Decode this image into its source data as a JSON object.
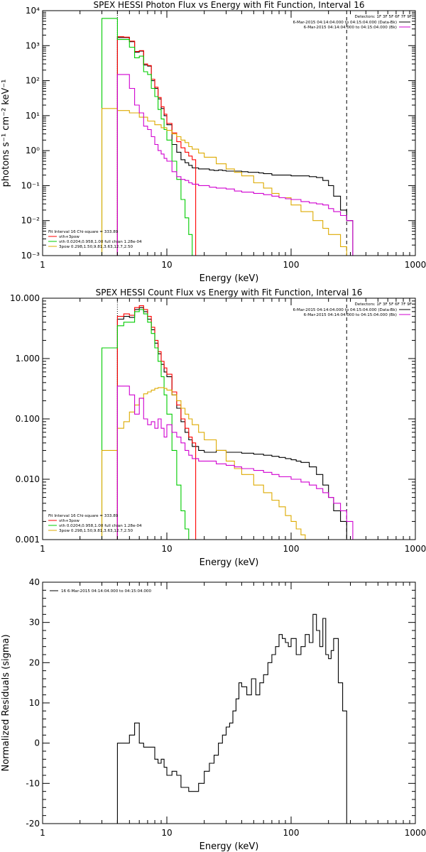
{
  "chart_data": [
    {
      "type": "line",
      "title": "SPEX HESSI Photon Flux vs Energy with Fit Function, Interval 16",
      "xlabel": "Energy (keV)",
      "ylabel": "photons s⁻¹ cm⁻² keV⁻¹",
      "xscale": "log",
      "yscale": "log",
      "xlim": [
        1,
        1000
      ],
      "ylim": [
        0.001,
        10000
      ],
      "x_ticklabels": [
        "1",
        "10",
        "100",
        "1000"
      ],
      "y_ticklabels": [
        "10⁻³",
        "10⁻²",
        "10⁻¹",
        "10⁰",
        "10¹",
        "10²",
        "10³",
        "10⁴"
      ],
      "legend_top_right": {
        "detectors": "Detectors: 1F 3F 5F 6F 7F 9F",
        "entries": [
          {
            "text": "6-Mar-2015 04:14:04.000 to 04:15:04.000 (Data-Bk)",
            "color": "#000000"
          },
          {
            "text": "6-Mar-2015 04:14:04.000 to 04:15:04.000 (Bk)",
            "color": "#d000d0"
          }
        ]
      },
      "legend_bottom_left": {
        "header": "Fit Interval 16   Chi-square = 333.89",
        "entries": [
          {
            "text": "vth+3pow",
            "color": "#ff0000"
          },
          {
            "text": "vth 0.0204,0.958,1.00  full chian 1.28e-04",
            "color": "#00cc00"
          },
          {
            "text": "3pow 0.298,1.50,9.81,3.63,12.7,2.50",
            "color": "#ddaa00"
          }
        ]
      },
      "fit_range_keV": [
        4.0,
        280
      ],
      "series": [
        {
          "name": "Data-Bk",
          "color": "#000000",
          "x": [
            4.0,
            4.5,
            5,
            5.5,
            6,
            6.5,
            7,
            7.5,
            8,
            8.5,
            9,
            9.5,
            10,
            11,
            12,
            13,
            14,
            15,
            16,
            18,
            20,
            22,
            24,
            26,
            28,
            30,
            35,
            40,
            45,
            50,
            55,
            60,
            70,
            80,
            90,
            100,
            110,
            120,
            140,
            160,
            180,
            200,
            220,
            250,
            280
          ],
          "y": [
            1700,
            1700,
            1300,
            650,
            700,
            280,
            260,
            100,
            60,
            30,
            16,
            10,
            5.5,
            1.5,
            0.9,
            0.55,
            0.45,
            0.38,
            0.32,
            0.3,
            0.3,
            0.28,
            0.27,
            0.28,
            0.27,
            0.26,
            0.26,
            0.25,
            0.24,
            0.24,
            0.23,
            0.22,
            0.2,
            0.2,
            0.2,
            0.19,
            0.19,
            0.19,
            0.18,
            0.17,
            0.14,
            0.1,
            0.05,
            0.02,
            0.01
          ]
        },
        {
          "name": "vth+3pow",
          "color": "#ff0000",
          "x": [
            4.0,
            4.5,
            5,
            5.5,
            6,
            6.5,
            7,
            7.5,
            8,
            8.5,
            9,
            9.5,
            10,
            11,
            12,
            13,
            14,
            15,
            16
          ],
          "y": [
            1800,
            1750,
            1350,
            680,
            720,
            300,
            270,
            110,
            65,
            33,
            18,
            11,
            6,
            3.2,
            1.8,
            1.2,
            0.9,
            0.7,
            0.55
          ]
        },
        {
          "name": "vth",
          "color": "#00cc00",
          "x": [
            3.0,
            3.5,
            4.0,
            4.5,
            5,
            5.5,
            6,
            6.5,
            7,
            7.5,
            8,
            8.5,
            9,
            9.5,
            10,
            11,
            12,
            13,
            14,
            15,
            16
          ],
          "y": [
            6000,
            6000,
            1500,
            1500,
            900,
            450,
            500,
            180,
            150,
            60,
            35,
            15,
            8,
            4,
            2,
            0.5,
            0.15,
            0.04,
            0.012,
            0.004,
            0.001
          ]
        },
        {
          "name": "3pow",
          "color": "#ddaa00",
          "x": [
            3.0,
            4.0,
            5,
            6,
            7,
            8,
            9,
            10,
            11,
            12,
            13,
            14,
            15,
            16,
            18,
            20,
            25,
            30,
            35,
            40,
            50,
            60,
            70,
            80,
            100,
            120,
            150,
            180,
            200,
            250,
            280
          ],
          "y": [
            16,
            14,
            12,
            9,
            7,
            5.5,
            4.5,
            3.8,
            3.0,
            2.5,
            2.0,
            1.7,
            1.3,
            1.1,
            0.85,
            0.65,
            0.42,
            0.3,
            0.24,
            0.19,
            0.12,
            0.085,
            0.06,
            0.045,
            0.028,
            0.018,
            0.01,
            0.006,
            0.004,
            0.0018,
            0.001
          ]
        },
        {
          "name": "Bk",
          "color": "#d000d0",
          "x": [
            4.0,
            4.5,
            5,
            5.5,
            6,
            6.5,
            7,
            7.5,
            8,
            8.5,
            9,
            9.5,
            10,
            11,
            12,
            13,
            14,
            15,
            16,
            18,
            20,
            22,
            25,
            30,
            35,
            40,
            50,
            60,
            70,
            80,
            90,
            100,
            120,
            140,
            160,
            180,
            200,
            220,
            250,
            280
          ],
          "y": [
            150,
            150,
            60,
            20,
            12,
            5,
            4,
            2.5,
            1.5,
            1.0,
            0.8,
            0.6,
            0.5,
            0.25,
            0.18,
            0.15,
            0.14,
            0.12,
            0.11,
            0.1,
            0.1,
            0.09,
            0.085,
            0.08,
            0.07,
            0.065,
            0.06,
            0.055,
            0.05,
            0.045,
            0.042,
            0.04,
            0.035,
            0.032,
            0.03,
            0.028,
            0.022,
            0.018,
            0.014,
            0.01
          ]
        }
      ]
    },
    {
      "type": "line",
      "title": "SPEX HESSI Count Flux vs Energy with Fit Function, Interval 16",
      "xlabel": "Energy (keV)",
      "ylabel": "",
      "xscale": "log",
      "yscale": "log",
      "xlim": [
        1,
        1000
      ],
      "ylim": [
        0.001,
        10
      ],
      "x_ticklabels": [
        "1",
        "10",
        "100",
        "1000"
      ],
      "y_ticklabels": [
        "0.001",
        "0.010",
        "0.100",
        "1.000",
        "10.000"
      ],
      "legend_top_right": {
        "detectors": "Detectors: 1F 3F 5F 6F 7F 9F",
        "entries": [
          {
            "text": "6-Mar-2015 04:14:04.000 to 04:15:04.000 (Data-Bk)",
            "color": "#000000"
          },
          {
            "text": "6-Mar-2015 04:14:04.000 to 04:15:04.000 (Bk)",
            "color": "#d000d0"
          }
        ]
      },
      "legend_bottom_left": {
        "header": "Fit Interval 16   Chi-square = 333.89",
        "entries": [
          {
            "text": "vth+3pow",
            "color": "#ff0000"
          },
          {
            "text": "vth 0.0204,0.958,1.00  full chian 1.28e-04",
            "color": "#00cc00"
          },
          {
            "text": "3pow 0.298,1.50,9.81,3.63,12.7,2.50",
            "color": "#ddaa00"
          }
        ]
      },
      "fit_range_keV": [
        4.0,
        280
      ],
      "series": [
        {
          "name": "Data-Bk",
          "color": "#000000",
          "x": [
            4.0,
            4.5,
            5,
            5.5,
            6,
            6.5,
            7,
            7.5,
            8,
            8.5,
            9,
            9.5,
            10,
            11,
            12,
            13,
            14,
            15,
            16,
            18,
            20,
            25,
            30,
            35,
            40,
            50,
            60,
            70,
            80,
            90,
            100,
            110,
            120,
            140,
            160,
            180,
            200,
            220,
            250,
            280
          ],
          "y": [
            4.5,
            5.0,
            4.8,
            6.5,
            7.0,
            6.0,
            4.5,
            3.0,
            1.8,
            1.2,
            0.8,
            0.6,
            0.5,
            0.25,
            0.15,
            0.09,
            0.06,
            0.045,
            0.035,
            0.03,
            0.028,
            0.03,
            0.028,
            0.028,
            0.027,
            0.026,
            0.025,
            0.024,
            0.023,
            0.022,
            0.021,
            0.02,
            0.019,
            0.016,
            0.012,
            0.008,
            0.005,
            0.003,
            0.002,
            0.001
          ]
        },
        {
          "name": "vth+3pow",
          "color": "#ff0000",
          "x": [
            4.0,
            4.5,
            5,
            5.5,
            6,
            6.5,
            7,
            7.5,
            8,
            8.5,
            9,
            9.5,
            10,
            11,
            12,
            13,
            14,
            15,
            16
          ],
          "y": [
            5.0,
            5.5,
            5.2,
            7.0,
            7.5,
            6.5,
            5.0,
            3.3,
            2.0,
            1.3,
            0.9,
            0.7,
            0.55,
            0.28,
            0.17,
            0.1,
            0.07,
            0.05,
            0.04
          ]
        },
        {
          "name": "vth",
          "color": "#00cc00",
          "x": [
            3.0,
            3.5,
            4.0,
            4.5,
            5,
            5.5,
            6,
            6.5,
            7,
            7.5,
            8,
            8.5,
            9,
            9.5,
            10,
            11,
            12,
            13,
            14,
            15
          ],
          "y": [
            1.5,
            1.5,
            3.5,
            4.0,
            4.0,
            6.0,
            6.5,
            5.5,
            4.0,
            2.6,
            1.5,
            0.9,
            0.5,
            0.25,
            0.12,
            0.03,
            0.008,
            0.003,
            0.0015,
            0.001
          ]
        },
        {
          "name": "3pow",
          "color": "#ddaa00",
          "x": [
            3.0,
            3.5,
            4.0,
            4.5,
            5,
            5.5,
            6,
            6.5,
            7,
            7.5,
            8,
            8.5,
            9,
            9.5,
            10,
            11,
            12,
            13,
            14,
            15,
            16,
            18,
            20,
            25,
            30,
            35,
            40,
            50,
            60,
            70,
            80,
            90,
            100,
            110,
            120,
            130
          ],
          "y": [
            0.03,
            0.03,
            0.07,
            0.09,
            0.13,
            0.17,
            0.22,
            0.26,
            0.28,
            0.3,
            0.32,
            0.33,
            0.33,
            0.32,
            0.3,
            0.25,
            0.2,
            0.15,
            0.12,
            0.1,
            0.08,
            0.06,
            0.045,
            0.03,
            0.02,
            0.015,
            0.012,
            0.008,
            0.006,
            0.0045,
            0.0035,
            0.0025,
            0.002,
            0.0015,
            0.0012,
            0.001
          ]
        },
        {
          "name": "Bk",
          "color": "#d000d0",
          "x": [
            4.0,
            4.5,
            5,
            5.5,
            6,
            6.5,
            7,
            7.5,
            8,
            8.5,
            9,
            9.5,
            10,
            11,
            12,
            13,
            14,
            15,
            16,
            18,
            20,
            25,
            30,
            35,
            40,
            50,
            60,
            70,
            80,
            90,
            100,
            120,
            140,
            160,
            180,
            200,
            220,
            250,
            280
          ],
          "y": [
            0.35,
            0.35,
            0.25,
            0.12,
            0.22,
            0.1,
            0.08,
            0.09,
            0.07,
            0.1,
            0.07,
            0.05,
            0.08,
            0.06,
            0.05,
            0.04,
            0.03,
            0.025,
            0.022,
            0.02,
            0.02,
            0.018,
            0.017,
            0.016,
            0.015,
            0.014,
            0.013,
            0.012,
            0.011,
            0.011,
            0.01,
            0.009,
            0.008,
            0.007,
            0.006,
            0.005,
            0.004,
            0.003,
            0.002
          ]
        }
      ]
    },
    {
      "type": "line",
      "title": "",
      "xlabel": "Energy (keV)",
      "ylabel": "Normalized Residuals (sigma)",
      "xscale": "log",
      "yscale": "linear",
      "xlim": [
        1,
        1000
      ],
      "ylim": [
        -20,
        40
      ],
      "x_ticklabels": [
        "1",
        "10",
        "100",
        "1000"
      ],
      "y_ticklabels": [
        "-20",
        "-10",
        "0",
        "10",
        "20",
        "30",
        "40"
      ],
      "legend": {
        "text": "16  6-Mar-2015 04:14:04.000 to 04:15:04.000",
        "color": "#000000"
      },
      "series": [
        {
          "name": "16  6-Mar-2015 04:14:04.000 to 04:15:04.000",
          "color": "#000000",
          "x": [
            4.0,
            4.5,
            5,
            5.5,
            6,
            6.5,
            7,
            7.5,
            8,
            8.5,
            9,
            9.5,
            10,
            11,
            12,
            13,
            14,
            15,
            16,
            18,
            20,
            22,
            24,
            26,
            28,
            30,
            32,
            34,
            36,
            38,
            40,
            44,
            48,
            52,
            56,
            60,
            65,
            70,
            75,
            80,
            85,
            90,
            95,
            100,
            110,
            120,
            130,
            140,
            150,
            160,
            170,
            180,
            190,
            200,
            210,
            220,
            240,
            260,
            280
          ],
          "y": [
            0,
            0,
            2,
            5,
            0,
            -1,
            -1,
            -1,
            -4,
            -5,
            -4,
            -6,
            -8,
            -7,
            -8,
            -11,
            -11,
            -12,
            -12,
            -10,
            -7,
            -5,
            -3,
            0,
            2,
            4,
            5,
            8,
            11,
            15,
            14,
            12,
            16,
            12,
            15,
            17,
            20,
            22,
            24,
            27,
            26,
            25,
            24,
            26,
            22,
            24,
            27,
            25,
            32,
            28,
            24,
            31,
            22,
            21,
            23,
            26,
            15,
            8,
            -20
          ]
        }
      ]
    }
  ]
}
